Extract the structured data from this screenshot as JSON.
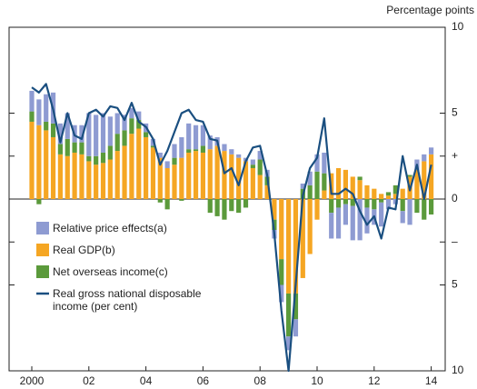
{
  "chart_data": {
    "type": "bar",
    "y_label": "Percentage points",
    "categories": [
      "2000",
      null,
      null,
      null,
      null,
      null,
      null,
      null,
      "02",
      null,
      null,
      null,
      null,
      null,
      null,
      null,
      "04",
      null,
      null,
      null,
      null,
      null,
      null,
      null,
      "06",
      null,
      null,
      null,
      null,
      null,
      null,
      null,
      "08",
      null,
      null,
      null,
      null,
      null,
      null,
      null,
      "10",
      null,
      null,
      null,
      null,
      null,
      null,
      null,
      "12",
      null,
      null,
      null,
      null,
      null,
      null,
      null,
      "14"
    ],
    "series": [
      {
        "name": "Relative price effects(a)",
        "color": "#8e9bd2",
        "values": [
          1.2,
          1.5,
          1.6,
          1.8,
          1.2,
          1.5,
          1.0,
          1.0,
          2.5,
          2.4,
          2.3,
          1.7,
          1.2,
          0.9,
          0.6,
          0.5,
          0.5,
          0.4,
          0.3,
          0.4,
          0.8,
          1.2,
          1.5,
          1.4,
          1.2,
          0.8,
          0.5,
          0.4,
          0.3,
          0.2,
          0.2,
          0.3,
          0.5,
          0.4,
          -0.5,
          -1.0,
          -0.8,
          -1.0,
          0.3,
          0.8,
          1.0,
          1.2,
          -1.5,
          -1.8,
          -1.2,
          -2.0,
          -2.4,
          -1.5,
          -0.9,
          -1.4,
          -0.6,
          -0.3,
          -0.7,
          -1.5,
          0.6,
          0.4,
          0.4
        ]
      },
      {
        "name": "Real GDP(b)",
        "color": "#f5a623",
        "values": [
          4.5,
          4.3,
          4.0,
          3.6,
          2.6,
          2.5,
          2.7,
          2.6,
          2.2,
          2.0,
          2.1,
          2.3,
          2.8,
          3.1,
          3.8,
          4.1,
          3.6,
          3.0,
          2.4,
          1.8,
          2.0,
          2.4,
          2.7,
          2.8,
          2.7,
          2.9,
          3.1,
          2.8,
          2.6,
          2.4,
          2.2,
          1.8,
          1.4,
          0.8,
          -1.2,
          -3.5,
          -5.5,
          -5.5,
          -4.6,
          -3.2,
          -1.2,
          0.5,
          1.5,
          1.8,
          1.7,
          1.3,
          1.1,
          0.8,
          0.6,
          0.3,
          0.2,
          0.3,
          0.6,
          1.3,
          1.7,
          2.2,
          2.6
        ]
      },
      {
        "name": "Net overseas income(c)",
        "color": "#5b9a3b",
        "values": [
          0.6,
          -0.3,
          0.5,
          0.8,
          0.6,
          1.0,
          0.6,
          0.7,
          0.3,
          0.5,
          0.6,
          0.8,
          1.0,
          0.9,
          0.9,
          0.5,
          0.3,
          0.1,
          -0.2,
          -0.6,
          0.4,
          -0.1,
          0.2,
          0.1,
          0.4,
          -0.8,
          -1.0,
          -1.2,
          -0.7,
          -0.8,
          -0.5,
          0.2,
          0.9,
          0.5,
          -0.6,
          -1.5,
          -2.5,
          -1.5,
          0.6,
          0.8,
          1.6,
          1.0,
          -0.8,
          -0.5,
          -0.3,
          -0.4,
          0.2,
          -0.5,
          -0.6,
          -0.2,
          0.2,
          0.5,
          -0.7,
          0.1,
          -0.8,
          -1.2,
          -0.9
        ]
      },
      {
        "name": "Real gross national disposable income (per cent)",
        "color": "#1a4f80",
        "kind": "line",
        "values": [
          6.5,
          6.2,
          6.7,
          5.2,
          3.3,
          5.0,
          3.7,
          3.5,
          5.0,
          5.2,
          4.8,
          5.4,
          5.3,
          4.6,
          5.6,
          4.5,
          4.2,
          3.5,
          2.0,
          2.8,
          3.9,
          5.0,
          5.2,
          4.6,
          4.5,
          3.5,
          3.4,
          1.5,
          1.8,
          0.8,
          2.2,
          3.0,
          3.1,
          1.4,
          -2.0,
          -6.5,
          -10.0,
          -5.0,
          0.2,
          1.8,
          2.4,
          4.7,
          0.3,
          0.3,
          0.6,
          0.3,
          -0.7,
          -1.5,
          -1.0,
          -2.3,
          -0.5,
          -0.6,
          2.5,
          0.5,
          2.0,
          0.0,
          2.0
        ]
      }
    ],
    "ylim": [
      -10,
      10
    ],
    "yticks": [
      {
        "value": -10,
        "label": "10"
      },
      {
        "value": -5,
        "label": "5"
      },
      {
        "value": -2.5,
        "label": "–"
      },
      0,
      {
        "value": 2.5,
        "label": "+"
      },
      5,
      10
    ]
  }
}
